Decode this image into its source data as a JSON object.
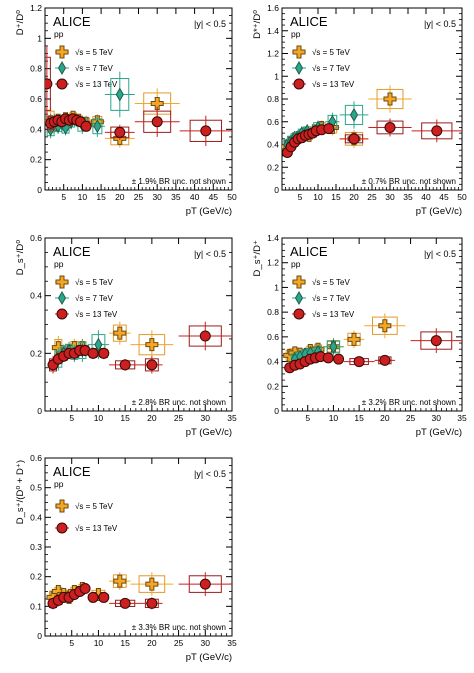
{
  "colors": {
    "s5": "#f5a623",
    "s5_edge": "#6b4a10",
    "s7": "#2ca68a",
    "s7_edge": "#1b5e4e",
    "s13": "#cc1f1f",
    "s13_edge": "#3a0808",
    "box13": "#9b1b1b",
    "box5": "#e09a2a",
    "box7": "#2ca68a"
  },
  "chart_data": [
    {
      "type": "scatter",
      "panel": "D+/D0",
      "ylabel": "D⁺/D⁰",
      "xlabel": "p_T (GeV/c)",
      "xlim": [
        0,
        50
      ],
      "ylim": [
        0,
        1.2
      ],
      "xticks": [
        5,
        10,
        15,
        20,
        25,
        30,
        35,
        40,
        45,
        50
      ],
      "yticks": [
        0,
        0.2,
        0.4,
        0.6,
        0.8,
        1,
        1.2
      ],
      "ytick_labels": [
        "0",
        "0.2",
        "0.4",
        "0.6",
        "0.8",
        "1",
        "1.2"
      ],
      "experiment": "ALICE",
      "system": "pp",
      "rapidity": "|y| < 0.5",
      "note": "± 1.9% BR unc. not shown",
      "legend": [
        "√s = 5 TeV",
        "√s = 7 TeV",
        "√s = 13 TeV"
      ],
      "series": [
        {
          "name": "√s = 5 TeV",
          "marker": "cross",
          "x": [
            1.5,
            2.5,
            3.5,
            4.5,
            5.5,
            6.5,
            7.5,
            9,
            11,
            14,
            20,
            30
          ],
          "y": [
            0.45,
            0.43,
            0.46,
            0.45,
            0.47,
            0.45,
            0.48,
            0.46,
            0.44,
            0.45,
            0.34,
            0.57
          ],
          "xerr": [
            0.5,
            0.5,
            0.5,
            0.5,
            0.5,
            0.5,
            0.5,
            1,
            1,
            2,
            4,
            6
          ],
          "yerr": [
            0.1,
            0.05,
            0.04,
            0.04,
            0.04,
            0.04,
            0.04,
            0.04,
            0.05,
            0.05,
            0.06,
            0.1
          ]
        },
        {
          "name": "√s = 7 TeV",
          "marker": "diamond",
          "x": [
            1.5,
            2.5,
            3.5,
            4.5,
            5.5,
            7,
            10,
            14,
            20
          ],
          "y": [
            0.4,
            0.45,
            0.42,
            0.44,
            0.41,
            0.45,
            0.43,
            0.42,
            0.63
          ],
          "xerr": [
            0.5,
            0.5,
            0.5,
            0.5,
            0.5,
            1,
            2,
            2,
            4
          ],
          "yerr": [
            0.06,
            0.05,
            0.05,
            0.05,
            0.05,
            0.05,
            0.06,
            0.07,
            0.15
          ]
        },
        {
          "name": "√s = 13 TeV",
          "marker": "circle",
          "x": [
            0.5,
            1.5,
            2.5,
            3.5,
            4.5,
            5.5,
            6.5,
            7.5,
            8.5,
            9.5,
            11,
            20,
            30,
            43
          ],
          "y": [
            0.7,
            0.44,
            0.45,
            0.46,
            0.45,
            0.47,
            0.46,
            0.47,
            0.46,
            0.45,
            0.42,
            0.38,
            0.45,
            0.39
          ],
          "xerr": [
            0.5,
            0.5,
            0.5,
            0.5,
            0.5,
            0.5,
            0.5,
            0.5,
            0.5,
            0.5,
            1,
            4,
            6,
            7
          ],
          "yerr": [
            0.25,
            0.06,
            0.04,
            0.03,
            0.03,
            0.03,
            0.03,
            0.03,
            0.03,
            0.03,
            0.03,
            0.05,
            0.1,
            0.1
          ]
        }
      ]
    },
    {
      "type": "scatter",
      "panel": "D*+/D0",
      "ylabel": "D*⁺/D⁰",
      "xlabel": "p_T (GeV/c)",
      "xlim": [
        0,
        50
      ],
      "ylim": [
        0,
        1.6
      ],
      "xticks": [
        5,
        10,
        15,
        20,
        25,
        30,
        35,
        40,
        45,
        50
      ],
      "yticks": [
        0,
        0.2,
        0.4,
        0.6,
        0.8,
        1,
        1.2,
        1.4,
        1.6
      ],
      "ytick_labels": [
        "0",
        "0.2",
        "0.4",
        "0.6",
        "0.8",
        "1",
        "1.2",
        "1.4",
        "1.6"
      ],
      "experiment": "ALICE",
      "system": "pp",
      "rapidity": "|y| < 0.5",
      "note": "± 0.7% BR unc. not shown",
      "legend": [
        "√s = 5 TeV",
        "√s = 7 TeV",
        "√s = 13 TeV"
      ],
      "series": [
        {
          "name": "√s = 5 TeV",
          "marker": "cross",
          "x": [
            1.5,
            2.5,
            3.5,
            4.5,
            5.5,
            6.5,
            7.5,
            9,
            11,
            14,
            20,
            30
          ],
          "y": [
            0.38,
            0.42,
            0.45,
            0.46,
            0.47,
            0.5,
            0.48,
            0.52,
            0.55,
            0.55,
            0.45,
            0.8
          ],
          "xerr": [
            0.5,
            0.5,
            0.5,
            0.5,
            0.5,
            0.5,
            0.5,
            1,
            1,
            2,
            4,
            6
          ],
          "yerr": [
            0.08,
            0.06,
            0.05,
            0.05,
            0.05,
            0.05,
            0.05,
            0.05,
            0.06,
            0.07,
            0.08,
            0.12
          ]
        },
        {
          "name": "√s = 7 TeV",
          "marker": "diamond",
          "x": [
            1.5,
            2.5,
            3.5,
            4.5,
            5.5,
            7,
            10,
            14,
            20
          ],
          "y": [
            0.4,
            0.43,
            0.46,
            0.47,
            0.5,
            0.52,
            0.55,
            0.6,
            0.66
          ],
          "xerr": [
            0.5,
            0.5,
            0.5,
            0.5,
            0.5,
            1,
            2,
            2,
            4
          ],
          "yerr": [
            0.06,
            0.06,
            0.05,
            0.05,
            0.05,
            0.05,
            0.06,
            0.08,
            0.12
          ]
        },
        {
          "name": "√s = 13 TeV",
          "marker": "circle",
          "x": [
            1.5,
            2.5,
            3.5,
            4.5,
            5.5,
            6.5,
            7.5,
            8.5,
            9.5,
            11,
            13,
            20,
            30,
            43
          ],
          "y": [
            0.33,
            0.38,
            0.42,
            0.45,
            0.46,
            0.48,
            0.49,
            0.5,
            0.52,
            0.53,
            0.54,
            0.45,
            0.55,
            0.52
          ],
          "xerr": [
            0.5,
            0.5,
            0.5,
            0.5,
            0.5,
            0.5,
            0.5,
            0.5,
            0.5,
            1,
            1,
            4,
            6,
            7
          ],
          "yerr": [
            0.04,
            0.03,
            0.03,
            0.03,
            0.03,
            0.03,
            0.03,
            0.03,
            0.03,
            0.03,
            0.04,
            0.05,
            0.08,
            0.1
          ]
        }
      ]
    },
    {
      "type": "scatter",
      "panel": "Ds+/D0",
      "ylabel": "D_s⁺/D⁰",
      "xlabel": "p_T (GeV/c)",
      "xlim": [
        0,
        35
      ],
      "ylim": [
        0,
        0.6
      ],
      "xticks": [
        5,
        10,
        15,
        20,
        25,
        30,
        35
      ],
      "yticks": [
        0,
        0.2,
        0.4,
        0.6
      ],
      "ytick_labels": [
        "0",
        "0.2",
        "0.4",
        "0.6"
      ],
      "experiment": "ALICE",
      "system": "pp",
      "rapidity": "|y| < 0.5",
      "note": "± 2.8% BR unc. not shown",
      "legend": [
        "√s = 5 TeV",
        "√s = 7 TeV",
        "√s = 13 TeV"
      ],
      "series": [
        {
          "name": "√s = 5 TeV",
          "marker": "cross",
          "x": [
            2.5,
            3.5,
            4.5,
            5.5,
            7,
            10,
            14,
            20
          ],
          "y": [
            0.22,
            0.2,
            0.21,
            0.22,
            0.22,
            0.21,
            0.27,
            0.23
          ],
          "xerr": [
            0.5,
            0.5,
            0.5,
            0.5,
            1,
            2,
            2,
            4
          ],
          "yerr": [
            0.04,
            0.03,
            0.03,
            0.03,
            0.03,
            0.03,
            0.04,
            0.05
          ]
        },
        {
          "name": "√s = 7 TeV",
          "marker": "diamond",
          "x": [
            2.5,
            3.5,
            4.5,
            5.5,
            7,
            10
          ],
          "y": [
            0.18,
            0.2,
            0.21,
            0.2,
            0.21,
            0.23
          ],
          "xerr": [
            0.5,
            0.5,
            0.5,
            0.5,
            1,
            2
          ],
          "yerr": [
            0.04,
            0.03,
            0.03,
            0.03,
            0.04,
            0.05
          ]
        },
        {
          "name": "√s = 13 TeV",
          "marker": "circle",
          "x": [
            1.5,
            2.5,
            3.5,
            4.5,
            5.5,
            6.5,
            7.5,
            9,
            11,
            15,
            20,
            30
          ],
          "y": [
            0.16,
            0.18,
            0.19,
            0.2,
            0.2,
            0.21,
            0.21,
            0.2,
            0.2,
            0.16,
            0.16,
            0.26
          ],
          "xerr": [
            0.5,
            0.5,
            0.5,
            0.5,
            0.5,
            0.5,
            0.5,
            1,
            1,
            3,
            2,
            5
          ],
          "yerr": [
            0.03,
            0.02,
            0.02,
            0.02,
            0.02,
            0.02,
            0.02,
            0.02,
            0.02,
            0.02,
            0.03,
            0.05
          ]
        }
      ]
    },
    {
      "type": "scatter",
      "panel": "Ds+/D+",
      "ylabel": "D_s⁺/D⁺",
      "xlabel": "p_T (GeV/c)",
      "xlim": [
        0,
        35
      ],
      "ylim": [
        0,
        1.4
      ],
      "xticks": [
        5,
        10,
        15,
        20,
        25,
        30,
        35
      ],
      "yticks": [
        0,
        0.2,
        0.4,
        0.6,
        0.8,
        1,
        1.2,
        1.4
      ],
      "ytick_labels": [
        "0",
        "0.2",
        "0.4",
        "0.6",
        "0.8",
        "1",
        "1.2",
        "1.4"
      ],
      "experiment": "ALICE",
      "system": "pp",
      "rapidity": "|y| < 0.5",
      "note": "± 3.2% BR unc. not shown",
      "legend": [
        "√s = 5 TeV",
        "√s = 7 TeV",
        "√s = 13 TeV"
      ],
      "series": [
        {
          "name": "√s = 5 TeV",
          "marker": "cross",
          "x": [
            1.5,
            2.5,
            3.5,
            4.5,
            5.5,
            7,
            10,
            14,
            20
          ],
          "y": [
            0.45,
            0.47,
            0.46,
            0.45,
            0.49,
            0.5,
            0.52,
            0.58,
            0.69
          ],
          "xerr": [
            0.5,
            0.5,
            0.5,
            0.5,
            0.5,
            1,
            2,
            2,
            4
          ],
          "yerr": [
            0.06,
            0.05,
            0.05,
            0.05,
            0.05,
            0.05,
            0.06,
            0.07,
            0.1
          ]
        },
        {
          "name": "√s = 7 TeV",
          "marker": "diamond",
          "x": [
            2.5,
            3.5,
            4.5,
            5.5,
            7,
            10
          ],
          "y": [
            0.42,
            0.44,
            0.46,
            0.47,
            0.48,
            0.52
          ],
          "xerr": [
            0.5,
            0.5,
            0.5,
            0.5,
            1,
            2
          ],
          "yerr": [
            0.06,
            0.05,
            0.05,
            0.05,
            0.06,
            0.07
          ]
        },
        {
          "name": "√s = 13 TeV",
          "marker": "circle",
          "x": [
            1.5,
            2.5,
            3.5,
            4.5,
            5.5,
            6.5,
            7.5,
            9,
            11,
            15,
            20,
            30
          ],
          "y": [
            0.35,
            0.37,
            0.38,
            0.4,
            0.42,
            0.43,
            0.44,
            0.43,
            0.42,
            0.4,
            0.41,
            0.57
          ],
          "xerr": [
            0.5,
            0.5,
            0.5,
            0.5,
            0.5,
            0.5,
            0.5,
            1,
            1,
            3,
            2,
            5
          ],
          "yerr": [
            0.04,
            0.03,
            0.03,
            0.03,
            0.03,
            0.03,
            0.03,
            0.03,
            0.03,
            0.03,
            0.04,
            0.1
          ]
        }
      ]
    },
    {
      "type": "scatter",
      "panel": "Ds+/(D0+D+)",
      "ylabel": "D_s⁺/(D⁰ + D⁺)",
      "xlabel": "p_T (GeV/c)",
      "xlim": [
        0,
        35
      ],
      "ylim": [
        0,
        0.6
      ],
      "xticks": [
        5,
        10,
        15,
        20,
        25,
        30,
        35
      ],
      "yticks": [
        0,
        0.1,
        0.2,
        0.3,
        0.4,
        0.5,
        0.6
      ],
      "ytick_labels": [
        "0",
        "0.1",
        "0.2",
        "0.3",
        "0.4",
        "0.5",
        "0.6"
      ],
      "experiment": "ALICE",
      "system": "pp",
      "rapidity": "|y| < 0.5",
      "note": "± 3.3% BR unc. not shown",
      "legend": [
        "√s = 5 TeV",
        "√s = 13 TeV"
      ],
      "series": [
        {
          "name": "√s = 5 TeV",
          "marker": "cross",
          "x": [
            1.5,
            2.5,
            3.5,
            4.5,
            5.5,
            7,
            10,
            14,
            20
          ],
          "y": [
            0.13,
            0.15,
            0.14,
            0.13,
            0.15,
            0.16,
            0.14,
            0.185,
            0.175
          ],
          "xerr": [
            0.5,
            0.5,
            0.5,
            0.5,
            0.5,
            1,
            2,
            2,
            4
          ],
          "yerr": [
            0.03,
            0.02,
            0.02,
            0.02,
            0.02,
            0.02,
            0.02,
            0.03,
            0.04
          ]
        },
        {
          "name": "√s = 13 TeV",
          "marker": "circle",
          "x": [
            1.5,
            2.5,
            3.5,
            4.5,
            5.5,
            6.5,
            7.5,
            9,
            11,
            15,
            20,
            30
          ],
          "y": [
            0.11,
            0.12,
            0.13,
            0.13,
            0.14,
            0.15,
            0.16,
            0.13,
            0.13,
            0.11,
            0.11,
            0.175
          ],
          "xerr": [
            0.5,
            0.5,
            0.5,
            0.5,
            0.5,
            0.5,
            0.5,
            1,
            1,
            3,
            2,
            5
          ],
          "yerr": [
            0.02,
            0.02,
            0.015,
            0.015,
            0.015,
            0.015,
            0.015,
            0.015,
            0.015,
            0.015,
            0.02,
            0.04
          ]
        }
      ]
    }
  ]
}
